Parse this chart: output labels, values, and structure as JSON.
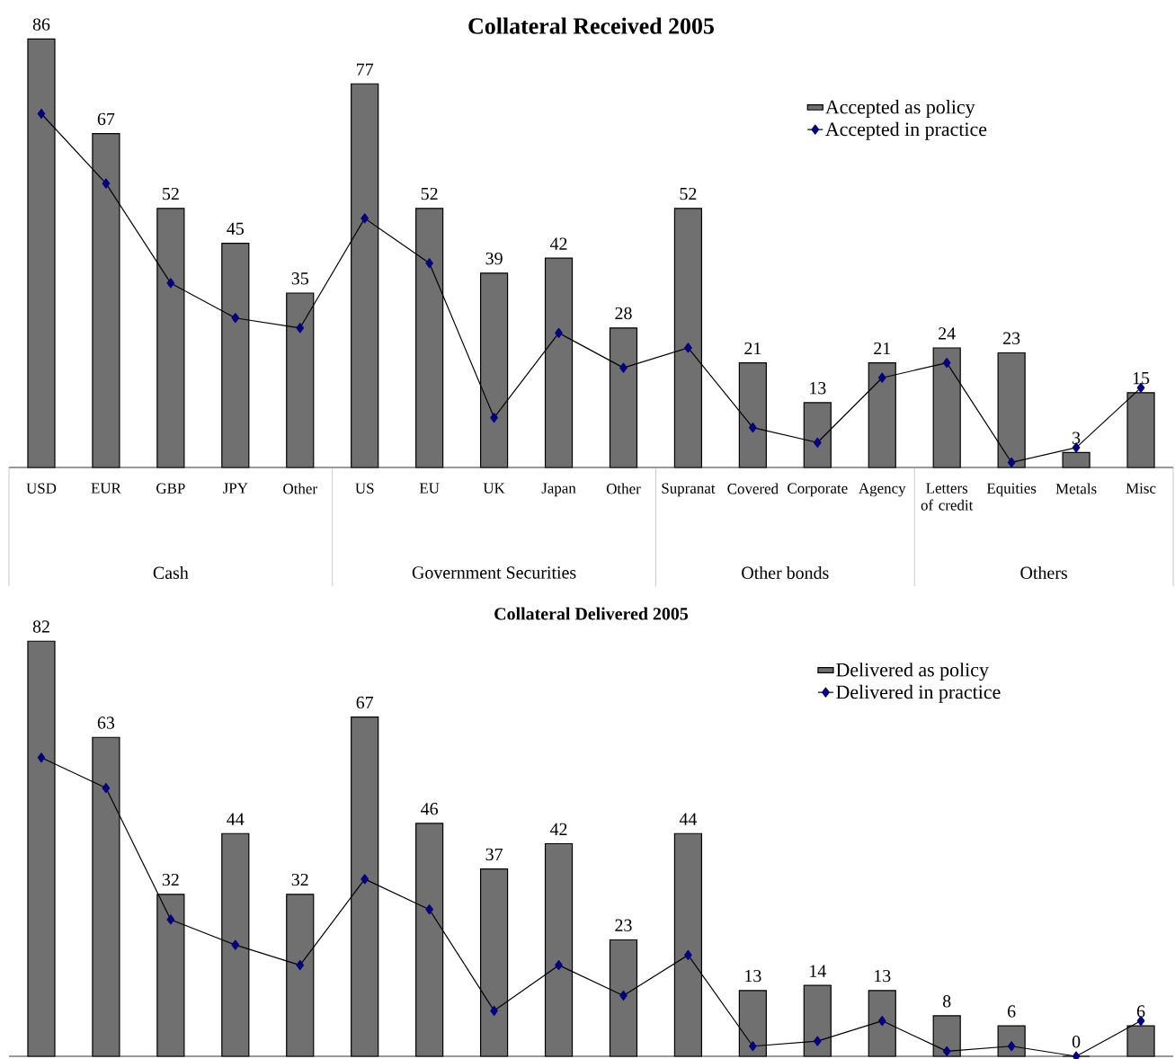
{
  "chart_data": [
    {
      "type": "bar",
      "title": "Collateral Received 2005",
      "categories": [
        "USD",
        "EUR",
        "GBP",
        "JPY",
        "Other",
        "US",
        "EU",
        "UK",
        "Japan",
        "Other",
        "Supranat",
        "Covered",
        "Corporate",
        "Agency",
        "Letters of credit",
        "Equities",
        "Metals",
        "Misc"
      ],
      "series": [
        {
          "name": "Accepted as policy",
          "color": "#707070",
          "values": [
            86,
            67,
            52,
            45,
            35,
            77,
            52,
            39,
            42,
            28,
            52,
            21,
            13,
            21,
            24,
            23,
            3,
            15
          ],
          "value_labels": [
            "86",
            "67",
            "52",
            "45",
            "35",
            "77",
            "52",
            "39",
            "42",
            "28",
            "52",
            "21",
            "13",
            "21",
            "24",
            "23",
            "3",
            "15"
          ]
        },
        {
          "name": "Accepted in practice",
          "type": "line",
          "color": "#000000",
          "marker": "diamond",
          "values": [
            71,
            57,
            37,
            30,
            28,
            50,
            41,
            10,
            27,
            20,
            24,
            8,
            5,
            18,
            21,
            1,
            4,
            16
          ]
        }
      ],
      "annotations": [
        "Cash",
        "Government Securities",
        "Other bonds",
        "Others"
      ],
      "legend": "top right"
    },
    {
      "type": "bar",
      "title": "Collateral Delivered 2005",
      "categories": [
        null,
        null,
        null,
        null,
        null,
        null,
        null,
        null,
        null,
        null,
        null,
        null,
        null,
        null,
        null,
        null,
        null,
        null
      ],
      "series": [
        {
          "name": "Delivered as policy",
          "color": "#707070",
          "values": [
            82,
            63,
            32,
            44,
            32,
            67,
            46,
            37,
            42,
            23,
            44,
            13,
            14,
            13,
            8,
            6,
            0,
            6
          ],
          "value_labels": [
            "82",
            "63",
            "32",
            "44",
            "32",
            "67",
            "46",
            "37",
            "42",
            "23",
            "44",
            "13",
            "14",
            "13",
            "8",
            "6",
            "0",
            "6"
          ]
        },
        {
          "name": "Delivered in practice",
          "type": "line",
          "color": "#000000",
          "marker": "diamond",
          "values": [
            59,
            53,
            27,
            22,
            18,
            35,
            29,
            9,
            18,
            12,
            20,
            2,
            3,
            7,
            1,
            2,
            0,
            7
          ]
        }
      ],
      "legend": "top right"
    }
  ]
}
